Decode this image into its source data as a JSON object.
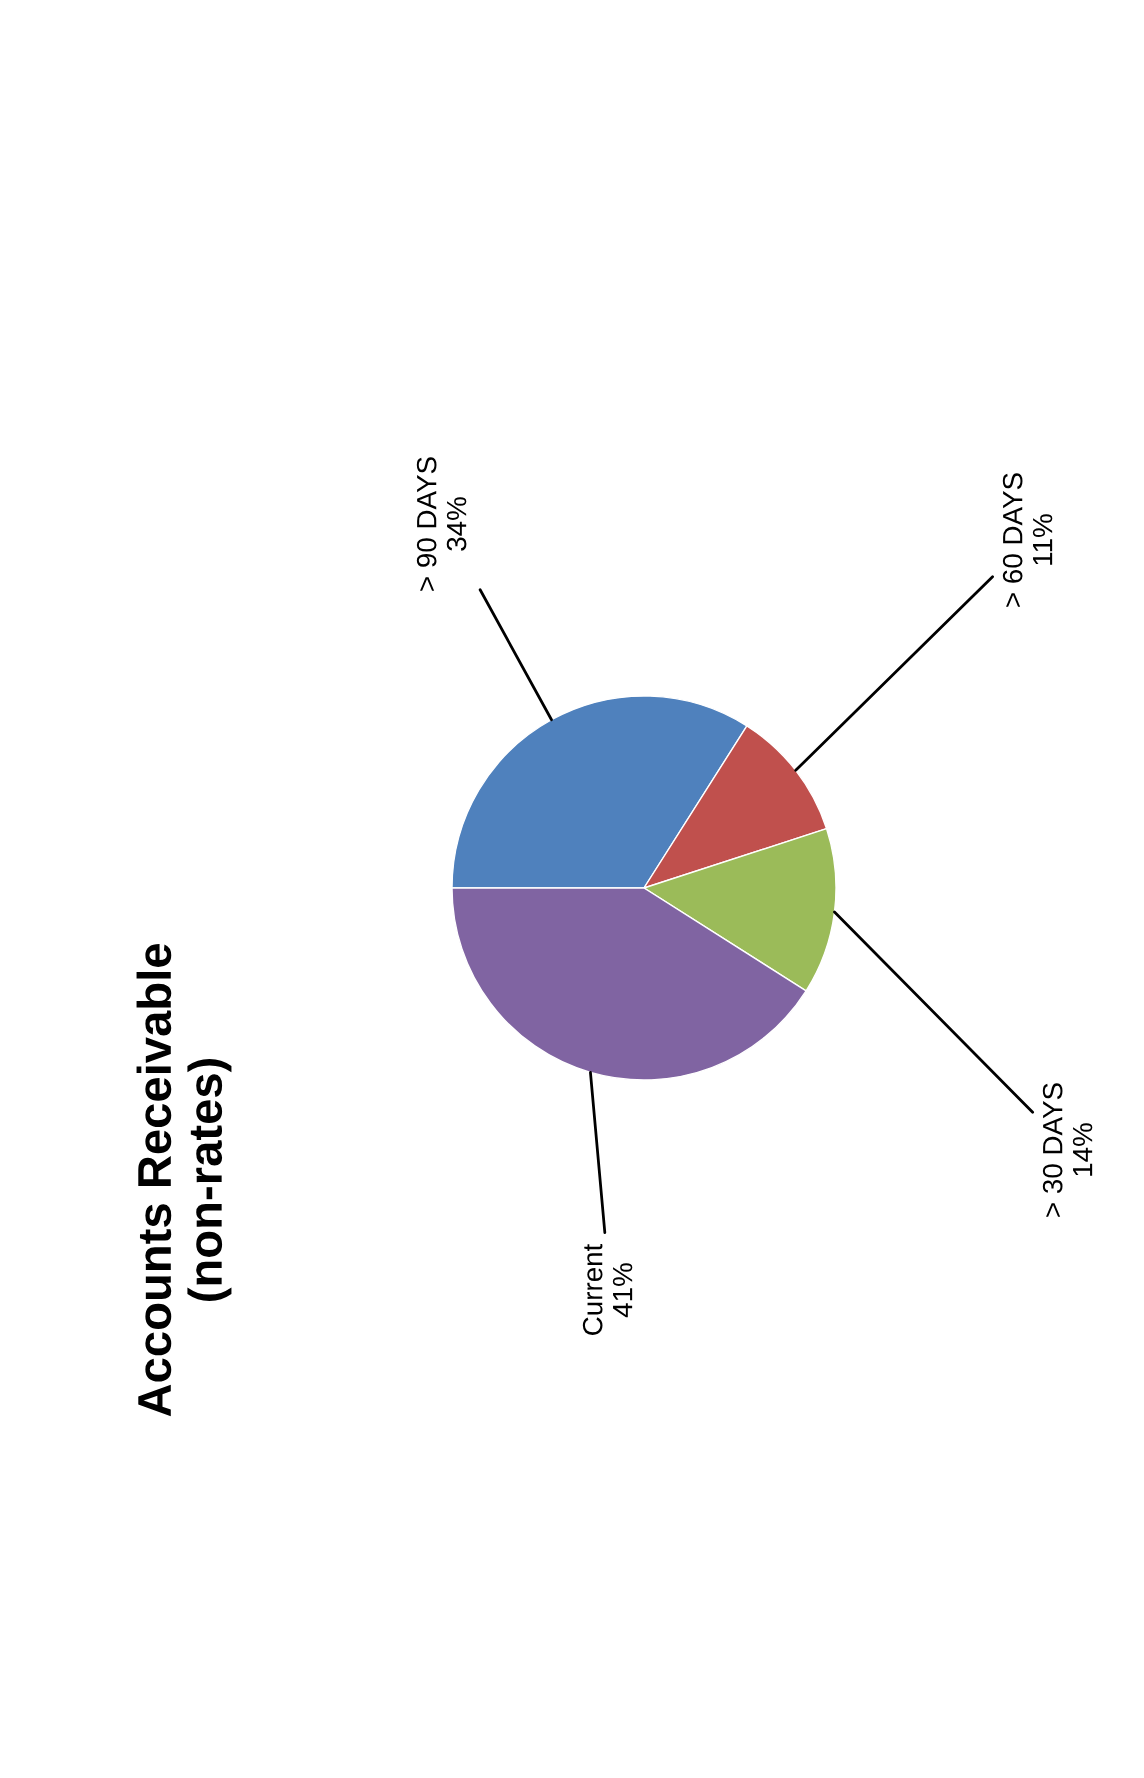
{
  "chart_data": {
    "type": "pie",
    "title": "Accounts Receivable\n(non-rates)",
    "categories": [
      "> 90 DAYS",
      "> 60 DAYS",
      "> 30 DAYS",
      "Current"
    ],
    "values": [
      34,
      11,
      14,
      41
    ],
    "colors": [
      "#4f81bd",
      "#c0504d",
      "#9bbb59",
      "#8064a2"
    ],
    "value_labels": [
      "34%",
      "11%",
      "14%",
      "41%"
    ],
    "legend": false
  }
}
